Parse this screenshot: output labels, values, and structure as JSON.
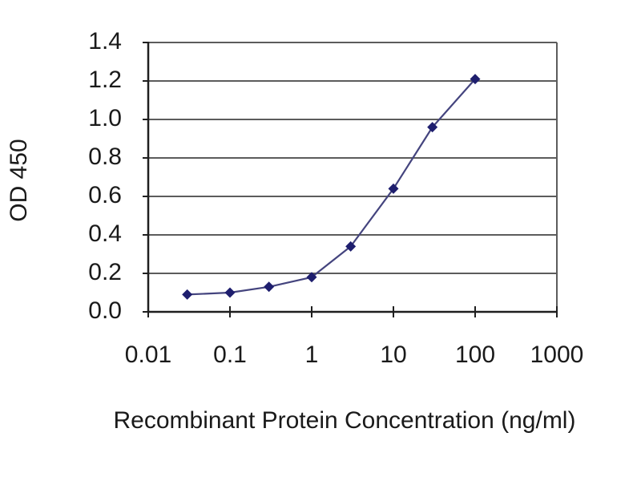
{
  "chart_data": {
    "type": "line",
    "title": "",
    "xlabel": "Recombinant Protein Concentration (ng/ml)",
    "ylabel": "OD 450",
    "x_scale": "log",
    "x": [
      0.03,
      0.1,
      0.3,
      1,
      3,
      10,
      30,
      100
    ],
    "series": [
      {
        "name": "OD 450",
        "values": [
          0.09,
          0.1,
          0.13,
          0.18,
          0.34,
          0.64,
          0.96,
          1.21
        ]
      }
    ],
    "xlim": [
      0.01,
      1000
    ],
    "ylim": [
      0.0,
      1.4
    ],
    "x_ticks": [
      0.01,
      0.1,
      1,
      10,
      100,
      1000
    ],
    "x_tick_labels": [
      "0.01",
      "0.1",
      "1",
      "10",
      "100",
      "1000"
    ],
    "y_ticks": [
      0.0,
      0.2,
      0.4,
      0.6,
      0.8,
      1.0,
      1.2,
      1.4
    ],
    "y_tick_labels": [
      "0.0",
      "0.2",
      "0.4",
      "0.6",
      "0.8",
      "1.0",
      "1.2",
      "1.4"
    ],
    "grid": "horizontal",
    "legend": "none",
    "marker": "diamond",
    "colors": {
      "series_marker": "#1e1e6e",
      "series_line": "#44447e",
      "gridline": "#5c5c5c",
      "axis": "#1f1f1f",
      "text": "#1a1a1a",
      "background": "#ffffff"
    }
  }
}
